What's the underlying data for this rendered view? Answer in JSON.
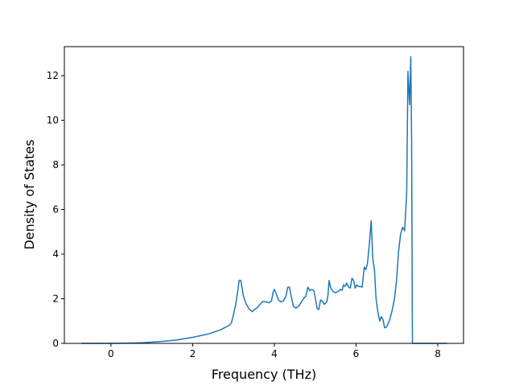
{
  "chart_data": {
    "type": "line",
    "title": "",
    "xlabel": "Frequency (THz)",
    "ylabel": "Density of States",
    "xlim": [
      -1.14,
      8.63
    ],
    "ylim": [
      0,
      13.3
    ],
    "xticks": [
      0,
      2,
      4,
      6,
      8
    ],
    "yticks": [
      0,
      2,
      4,
      6,
      8,
      10,
      12
    ],
    "grid": false,
    "legend": "none",
    "series": [
      {
        "color": "#1f77b4",
        "points": [
          [
            -0.72,
            0
          ],
          [
            -0.4,
            0
          ],
          [
            0.0,
            0
          ],
          [
            0.4,
            0.01
          ],
          [
            0.8,
            0.03
          ],
          [
            1.2,
            0.08
          ],
          [
            1.6,
            0.15
          ],
          [
            2.0,
            0.27
          ],
          [
            2.4,
            0.43
          ],
          [
            2.7,
            0.62
          ],
          [
            2.9,
            0.82
          ],
          [
            2.95,
            0.92
          ],
          [
            3.0,
            1.3
          ],
          [
            3.05,
            1.7
          ],
          [
            3.1,
            2.3
          ],
          [
            3.14,
            2.83
          ],
          [
            3.18,
            2.82
          ],
          [
            3.24,
            2.15
          ],
          [
            3.3,
            1.8
          ],
          [
            3.38,
            1.55
          ],
          [
            3.46,
            1.42
          ],
          [
            3.5,
            1.5
          ],
          [
            3.58,
            1.6
          ],
          [
            3.65,
            1.75
          ],
          [
            3.72,
            1.88
          ],
          [
            3.8,
            1.86
          ],
          [
            3.87,
            1.82
          ],
          [
            3.93,
            1.9
          ],
          [
            3.97,
            2.3
          ],
          [
            4.0,
            2.42
          ],
          [
            4.05,
            2.2
          ],
          [
            4.1,
            1.95
          ],
          [
            4.16,
            1.86
          ],
          [
            4.22,
            1.9
          ],
          [
            4.28,
            2.1
          ],
          [
            4.33,
            2.52
          ],
          [
            4.37,
            2.52
          ],
          [
            4.42,
            2.05
          ],
          [
            4.47,
            1.65
          ],
          [
            4.53,
            1.58
          ],
          [
            4.6,
            1.68
          ],
          [
            4.67,
            1.88
          ],
          [
            4.73,
            2.05
          ],
          [
            4.77,
            2.1
          ],
          [
            4.82,
            2.52
          ],
          [
            4.87,
            2.36
          ],
          [
            4.92,
            2.42
          ],
          [
            4.97,
            2.35
          ],
          [
            5.02,
            1.85
          ],
          [
            5.05,
            1.55
          ],
          [
            5.09,
            1.52
          ],
          [
            5.13,
            1.95
          ],
          [
            5.17,
            1.9
          ],
          [
            5.22,
            1.75
          ],
          [
            5.28,
            1.85
          ],
          [
            5.31,
            2.12
          ],
          [
            5.34,
            2.82
          ],
          [
            5.38,
            2.48
          ],
          [
            5.44,
            2.32
          ],
          [
            5.5,
            2.27
          ],
          [
            5.56,
            2.32
          ],
          [
            5.62,
            2.42
          ],
          [
            5.66,
            2.38
          ],
          [
            5.69,
            2.62
          ],
          [
            5.73,
            2.55
          ],
          [
            5.77,
            2.7
          ],
          [
            5.82,
            2.52
          ],
          [
            5.86,
            2.48
          ],
          [
            5.9,
            2.92
          ],
          [
            5.94,
            2.82
          ],
          [
            5.98,
            2.48
          ],
          [
            6.02,
            2.62
          ],
          [
            6.06,
            2.55
          ],
          [
            6.1,
            2.55
          ],
          [
            6.15,
            2.52
          ],
          [
            6.2,
            3.42
          ],
          [
            6.24,
            3.3
          ],
          [
            6.28,
            3.6
          ],
          [
            6.33,
            4.55
          ],
          [
            6.37,
            5.5
          ],
          [
            6.41,
            3.8
          ],
          [
            6.45,
            3.3
          ],
          [
            6.49,
            2.0
          ],
          [
            6.53,
            1.45
          ],
          [
            6.58,
            1.0
          ],
          [
            6.62,
            1.2
          ],
          [
            6.66,
            1.05
          ],
          [
            6.7,
            0.7
          ],
          [
            6.74,
            0.72
          ],
          [
            6.78,
            0.85
          ],
          [
            6.83,
            1.1
          ],
          [
            6.88,
            1.45
          ],
          [
            6.94,
            2.0
          ],
          [
            6.99,
            2.8
          ],
          [
            7.04,
            4.1
          ],
          [
            7.09,
            4.9
          ],
          [
            7.14,
            5.2
          ],
          [
            7.19,
            5.05
          ],
          [
            7.24,
            6.8
          ],
          [
            7.27,
            12.2
          ],
          [
            7.31,
            10.7
          ],
          [
            7.34,
            12.85
          ],
          [
            7.36,
            9.0
          ],
          [
            7.38,
            0
          ],
          [
            7.5,
            0
          ],
          [
            7.8,
            0
          ],
          [
            8.1,
            0
          ],
          [
            8.23,
            0
          ]
        ]
      }
    ]
  }
}
